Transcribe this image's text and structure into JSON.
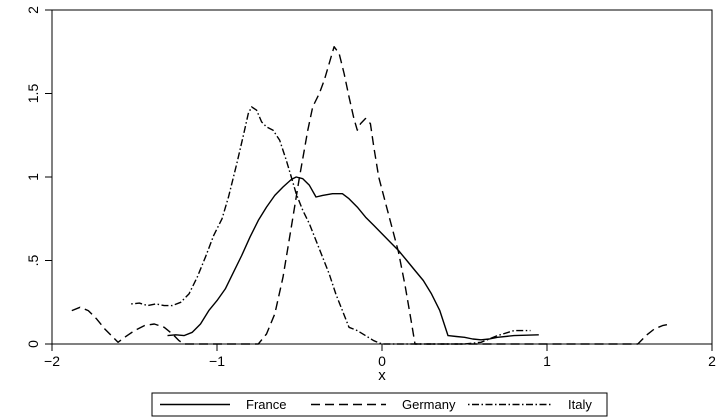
{
  "chart_data": {
    "type": "line",
    "xlabel": "x",
    "ylabel": "",
    "xlim": [
      -2,
      2
    ],
    "ylim": [
      0,
      2
    ],
    "x_ticks": [
      -2,
      -1,
      0,
      1,
      2
    ],
    "x_tick_labels": [
      "−2",
      "−1",
      "0",
      "1",
      "2"
    ],
    "y_ticks": [
      0,
      0.5,
      1,
      1.5,
      2
    ],
    "y_tick_labels": [
      "0",
      ".5",
      "1",
      "1.5",
      "2"
    ],
    "grid": false,
    "legend_position": "bottom",
    "series": [
      {
        "name": "France",
        "style": "solid",
        "points": [
          [
            -1.3,
            0.05
          ],
          [
            -1.25,
            0.055
          ],
          [
            -1.2,
            0.05
          ],
          [
            -1.15,
            0.07
          ],
          [
            -1.1,
            0.12
          ],
          [
            -1.05,
            0.2
          ],
          [
            -1.0,
            0.26
          ],
          [
            -0.95,
            0.33
          ],
          [
            -0.9,
            0.43
          ],
          [
            -0.85,
            0.53
          ],
          [
            -0.8,
            0.64
          ],
          [
            -0.75,
            0.74
          ],
          [
            -0.7,
            0.82
          ],
          [
            -0.65,
            0.89
          ],
          [
            -0.6,
            0.94
          ],
          [
            -0.55,
            0.985
          ],
          [
            -0.52,
            1.0
          ],
          [
            -0.48,
            0.99
          ],
          [
            -0.44,
            0.95
          ],
          [
            -0.4,
            0.88
          ],
          [
            -0.36,
            0.89
          ],
          [
            -0.3,
            0.9
          ],
          [
            -0.24,
            0.9
          ],
          [
            -0.2,
            0.87
          ],
          [
            -0.15,
            0.82
          ],
          [
            -0.1,
            0.76
          ],
          [
            -0.05,
            0.71
          ],
          [
            0.0,
            0.66
          ],
          [
            0.05,
            0.61
          ],
          [
            0.1,
            0.56
          ],
          [
            0.15,
            0.5
          ],
          [
            0.2,
            0.44
          ],
          [
            0.25,
            0.38
          ],
          [
            0.3,
            0.3
          ],
          [
            0.35,
            0.2
          ],
          [
            0.4,
            0.05
          ],
          [
            0.45,
            0.045
          ],
          [
            0.5,
            0.04
          ],
          [
            0.55,
            0.03
          ],
          [
            0.6,
            0.025
          ],
          [
            0.65,
            0.03
          ],
          [
            0.7,
            0.04
          ],
          [
            0.8,
            0.05
          ],
          [
            0.95,
            0.055
          ]
        ]
      },
      {
        "name": "Germany",
        "style": "dashed",
        "points": [
          [
            -1.88,
            0.2
          ],
          [
            -1.83,
            0.22
          ],
          [
            -1.78,
            0.2
          ],
          [
            -1.73,
            0.15
          ],
          [
            -1.68,
            0.09
          ],
          [
            -1.63,
            0.04
          ],
          [
            -1.6,
            0.01
          ],
          [
            -1.56,
            0.04
          ],
          [
            -1.5,
            0.08
          ],
          [
            -1.44,
            0.11
          ],
          [
            -1.38,
            0.12
          ],
          [
            -1.32,
            0.1
          ],
          [
            -1.27,
            0.06
          ],
          [
            -1.23,
            0.02
          ],
          [
            -1.2,
            0.0
          ],
          [
            -1.1,
            0.0
          ],
          [
            -1.0,
            0.0
          ],
          [
            -0.9,
            0.0
          ],
          [
            -0.82,
            0.0
          ],
          [
            -0.75,
            0.0
          ],
          [
            -0.7,
            0.06
          ],
          [
            -0.65,
            0.18
          ],
          [
            -0.6,
            0.4
          ],
          [
            -0.55,
            0.7
          ],
          [
            -0.5,
            1.0
          ],
          [
            -0.45,
            1.28
          ],
          [
            -0.42,
            1.42
          ],
          [
            -0.38,
            1.5
          ],
          [
            -0.35,
            1.58
          ],
          [
            -0.32,
            1.68
          ],
          [
            -0.29,
            1.78
          ],
          [
            -0.26,
            1.74
          ],
          [
            -0.23,
            1.62
          ],
          [
            -0.2,
            1.48
          ],
          [
            -0.17,
            1.35
          ],
          [
            -0.15,
            1.28
          ],
          [
            -0.13,
            1.32
          ],
          [
            -0.1,
            1.35
          ],
          [
            -0.07,
            1.32
          ],
          [
            -0.05,
            1.18
          ],
          [
            -0.02,
            1.0
          ],
          [
            0.02,
            0.85
          ],
          [
            0.06,
            0.7
          ],
          [
            0.1,
            0.55
          ],
          [
            0.14,
            0.35
          ],
          [
            0.18,
            0.12
          ],
          [
            0.2,
            0.0
          ],
          [
            0.3,
            0.0
          ],
          [
            0.6,
            0.0
          ],
          [
            1.0,
            0.0
          ],
          [
            1.3,
            0.0
          ],
          [
            1.55,
            0.0
          ],
          [
            1.6,
            0.05
          ],
          [
            1.65,
            0.09
          ],
          [
            1.7,
            0.11
          ],
          [
            1.75,
            0.12
          ]
        ]
      },
      {
        "name": "Italy",
        "style": "dashdot",
        "points": [
          [
            -1.52,
            0.24
          ],
          [
            -1.47,
            0.245
          ],
          [
            -1.42,
            0.23
          ],
          [
            -1.37,
            0.24
          ],
          [
            -1.32,
            0.23
          ],
          [
            -1.27,
            0.23
          ],
          [
            -1.22,
            0.25
          ],
          [
            -1.17,
            0.3
          ],
          [
            -1.12,
            0.4
          ],
          [
            -1.07,
            0.52
          ],
          [
            -1.02,
            0.65
          ],
          [
            -0.97,
            0.75
          ],
          [
            -0.93,
            0.88
          ],
          [
            -0.88,
            1.08
          ],
          [
            -0.84,
            1.25
          ],
          [
            -0.81,
            1.38
          ],
          [
            -0.79,
            1.42
          ],
          [
            -0.76,
            1.4
          ],
          [
            -0.73,
            1.33
          ],
          [
            -0.7,
            1.3
          ],
          [
            -0.66,
            1.28
          ],
          [
            -0.62,
            1.22
          ],
          [
            -0.58,
            1.1
          ],
          [
            -0.55,
            1.0
          ],
          [
            -0.52,
            0.9
          ],
          [
            -0.48,
            0.8
          ],
          [
            -0.44,
            0.72
          ],
          [
            -0.4,
            0.62
          ],
          [
            -0.36,
            0.52
          ],
          [
            -0.32,
            0.42
          ],
          [
            -0.28,
            0.3
          ],
          [
            -0.24,
            0.2
          ],
          [
            -0.2,
            0.1
          ],
          [
            -0.15,
            0.08
          ],
          [
            -0.1,
            0.05
          ],
          [
            -0.05,
            0.02
          ],
          [
            0.0,
            0.0
          ],
          [
            0.1,
            0.0
          ],
          [
            0.3,
            0.0
          ],
          [
            0.5,
            0.0
          ],
          [
            0.6,
            0.01
          ],
          [
            0.7,
            0.05
          ],
          [
            0.8,
            0.08
          ],
          [
            0.9,
            0.08
          ]
        ]
      }
    ]
  }
}
